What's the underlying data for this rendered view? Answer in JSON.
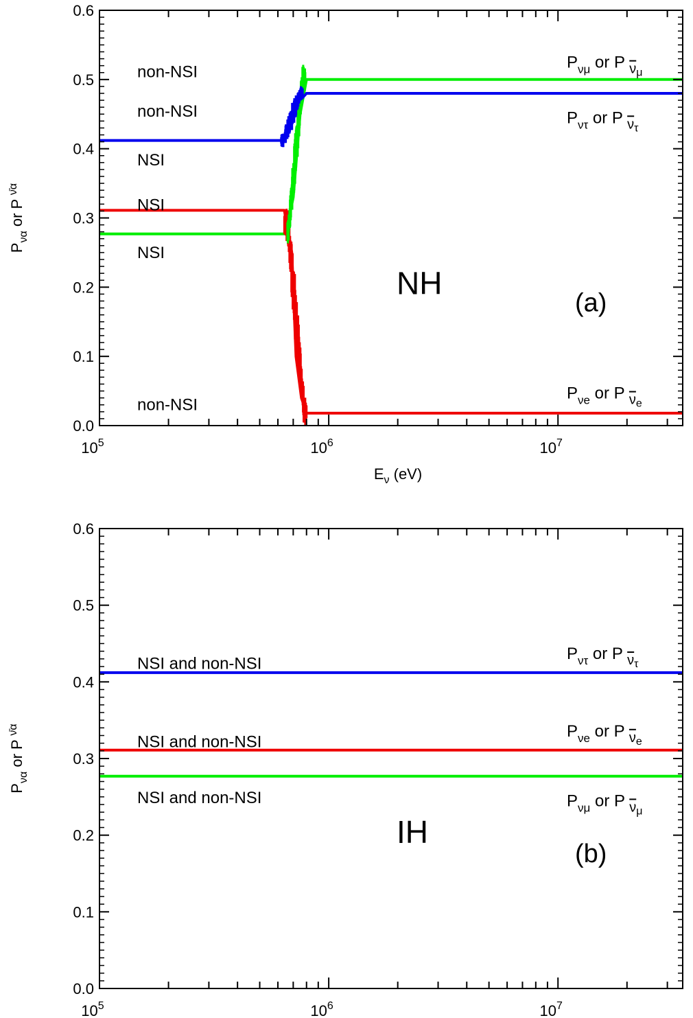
{
  "chart_data": [
    {
      "type": "line",
      "panel": "(a)",
      "hierarchy_label": "NH",
      "xlabel": "Eν (eV)",
      "ylabel": "Pνα or P ν̄α",
      "xscale": "log",
      "xlim": [
        100000,
        35000000
      ],
      "ylim": [
        0.0,
        0.6
      ],
      "x_ticks": [
        {
          "value": 100000,
          "base": "10",
          "exp": "5"
        },
        {
          "value": 1000000,
          "base": "10",
          "exp": "6"
        },
        {
          "value": 10000000,
          "base": "10",
          "exp": "7"
        }
      ],
      "y_ticks": [
        "0.0",
        "0.1",
        "0.2",
        "0.3",
        "0.4",
        "0.5",
        "0.6"
      ],
      "series": [
        {
          "name": "Pνμ or P ν̄μ",
          "color": "#00ee00",
          "x": [
            100000,
            650000,
            700000,
            750000,
            800000,
            35000000
          ],
          "y": [
            0.277,
            0.277,
            0.33,
            0.45,
            0.5,
            0.5
          ]
        },
        {
          "name": "Pντ or P ν̄τ",
          "color": "#0000ee",
          "x": [
            100000,
            620000,
            680000,
            750000,
            800000,
            35000000
          ],
          "y": [
            0.412,
            0.412,
            0.43,
            0.47,
            0.48,
            0.48
          ]
        },
        {
          "name": "Pνe or P ν̄e",
          "color": "#ee0000",
          "x": [
            100000,
            640000,
            690000,
            720000,
            760000,
            800000,
            35000000
          ],
          "y": [
            0.311,
            0.311,
            0.25,
            0.1,
            0.04,
            0.018,
            0.018
          ]
        }
      ],
      "annotations": [
        {
          "text": "non-NSI",
          "x": 180000,
          "y": 0.512
        },
        {
          "text": "non-NSI",
          "x": 180000,
          "y": 0.455
        },
        {
          "text": "NSI",
          "x": 180000,
          "y": 0.385
        },
        {
          "text": "NSI",
          "x": 180000,
          "y": 0.32
        },
        {
          "text": "NSI",
          "x": 180000,
          "y": 0.251
        },
        {
          "text": "non-NSI",
          "x": 180000,
          "y": 0.031
        }
      ],
      "series_labels": [
        {
          "base": "P",
          "sub": "νμ",
          "or": "or P",
          "bar": "ν",
          "bsub": "μ",
          "y": 0.525
        },
        {
          "base": "P",
          "sub": "ντ",
          "or": "or P",
          "bar": "ν",
          "bsub": "τ",
          "y": 0.445
        },
        {
          "base": "P",
          "sub": "νe",
          "or": "or P",
          "bar": "ν",
          "bsub": "e",
          "y": 0.047
        }
      ]
    },
    {
      "type": "line",
      "panel": "(b)",
      "hierarchy_label": "IH",
      "xlabel": "",
      "ylabel": "Pνα or P ν̄α",
      "xscale": "log",
      "xlim": [
        100000,
        35000000
      ],
      "ylim": [
        0.0,
        0.6
      ],
      "x_ticks": [
        {
          "value": 100000,
          "base": "10",
          "exp": "5"
        },
        {
          "value": 1000000,
          "base": "10",
          "exp": "6"
        },
        {
          "value": 10000000,
          "base": "10",
          "exp": "7"
        }
      ],
      "y_ticks": [
        "0.0",
        "0.1",
        "0.2",
        "0.3",
        "0.4",
        "0.5",
        "0.6"
      ],
      "series": [
        {
          "name": "Pντ or P ν̄τ",
          "color": "#0000ee",
          "x": [
            100000,
            35000000
          ],
          "y": [
            0.412,
            0.412
          ]
        },
        {
          "name": "Pνe or P ν̄e",
          "color": "#ee0000",
          "x": [
            100000,
            35000000
          ],
          "y": [
            0.311,
            0.311
          ]
        },
        {
          "name": "Pνμ or P ν̄μ",
          "color": "#00ee00",
          "x": [
            100000,
            35000000
          ],
          "y": [
            0.277,
            0.277
          ]
        }
      ],
      "annotations": [
        {
          "text": "NSI and non-NSI",
          "x": 180000,
          "y": 0.425
        },
        {
          "text": "NSI and non-NSI",
          "x": 180000,
          "y": 0.323
        },
        {
          "text": "NSI and non-NSI",
          "x": 180000,
          "y": 0.25
        }
      ],
      "series_labels": [
        {
          "base": "P",
          "sub": "ντ",
          "or": "or P",
          "bar": "ν",
          "bsub": "τ",
          "y": 0.437
        },
        {
          "base": "P",
          "sub": "νe",
          "or": "or P",
          "bar": "ν",
          "bsub": "e",
          "y": 0.336
        },
        {
          "base": "P",
          "sub": "νμ",
          "or": "or P",
          "bar": "ν",
          "bsub": "μ",
          "y": 0.245
        }
      ]
    }
  ]
}
